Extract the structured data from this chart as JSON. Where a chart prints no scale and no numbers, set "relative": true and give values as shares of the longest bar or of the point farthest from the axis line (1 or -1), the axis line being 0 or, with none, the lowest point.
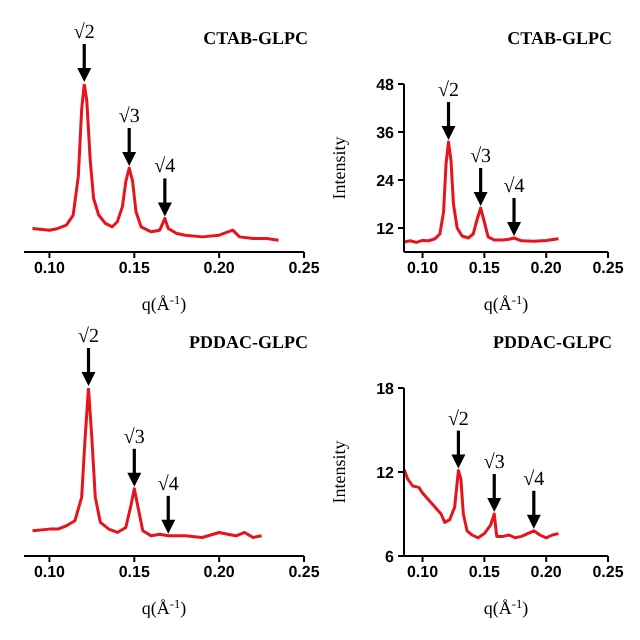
{
  "chart_data": [
    {
      "type": "line",
      "title": "CTAB-GLPC",
      "xlabel": "q(Å$^{-1}$)",
      "relative": true,
      "xlim": [
        0.085,
        0.25
      ],
      "xticks": [
        {
          "value": 0.1,
          "label": "0.10"
        },
        {
          "value": 0.15,
          "label": "0.15"
        },
        {
          "value": 0.2,
          "label": "0.20"
        },
        {
          "value": 0.25,
          "label": "0.25"
        }
      ],
      "marker": "none",
      "line_style": "solid",
      "series": [
        {
          "color": "#e8141c",
          "x": [
            0.09,
            0.1,
            0.105,
            0.11,
            0.114,
            0.117,
            0.119,
            0.1205,
            0.122,
            0.124,
            0.126,
            0.129,
            0.133,
            0.137,
            0.14,
            0.143,
            0.145,
            0.147,
            0.149,
            0.151,
            0.154,
            0.16,
            0.165,
            0.168,
            0.17,
            0.175,
            0.18,
            0.19,
            0.2,
            0.208,
            0.212,
            0.22,
            0.228,
            0.235
          ],
          "values": [
            0.14,
            0.13,
            0.14,
            0.16,
            0.22,
            0.45,
            0.85,
            1,
            0.9,
            0.55,
            0.32,
            0.22,
            0.17,
            0.15,
            0.18,
            0.27,
            0.42,
            0.5,
            0.42,
            0.24,
            0.15,
            0.12,
            0.13,
            0.2,
            0.14,
            0.11,
            0.1,
            0.09,
            0.1,
            0.13,
            0.09,
            0.08,
            0.08,
            0.07
          ]
        }
      ],
      "annotations": [
        {
          "text": "√2",
          "x": 0.1205,
          "y": 1
        },
        {
          "text": "√3",
          "x": 0.147,
          "y": 0.5
        },
        {
          "text": "√4",
          "x": 0.168,
          "y": 0.2
        }
      ]
    },
    {
      "type": "line",
      "title": "CTAB-GLPC",
      "xlabel": "q(Å$^{-1}$)",
      "ylabel": "Intensity",
      "xlim": [
        0.085,
        0.25
      ],
      "xticks": [
        {
          "value": 0.1,
          "label": "0.10"
        },
        {
          "value": 0.15,
          "label": "0.15"
        },
        {
          "value": 0.2,
          "label": "0.20"
        },
        {
          "value": 0.25,
          "label": "0.25"
        }
      ],
      "ylim": [
        6,
        48
      ],
      "yticks": [
        12,
        24,
        36,
        48
      ],
      "marker": "none",
      "line_style": "solid",
      "series": [
        {
          "color": "#e8141c",
          "x": [
            0.085,
            0.09,
            0.095,
            0.1,
            0.105,
            0.11,
            0.114,
            0.117,
            0.119,
            0.121,
            0.123,
            0.125,
            0.128,
            0.132,
            0.137,
            0.141,
            0.144,
            0.147,
            0.15,
            0.153,
            0.158,
            0.165,
            0.17,
            0.174,
            0.18,
            0.19,
            0.2,
            0.21
          ],
          "values": [
            8.5,
            8.8,
            8.4,
            8.9,
            8.8,
            9.3,
            10.5,
            16,
            28,
            33.5,
            29,
            18,
            12,
            10,
            9.5,
            10.5,
            14,
            17,
            13.5,
            9.8,
            9,
            9,
            9.2,
            9.5,
            8.8,
            8.7,
            8.9,
            9.3
          ]
        }
      ],
      "annotations": [
        {
          "text": "√2",
          "x": 0.121,
          "y": 33.5
        },
        {
          "text": "√3",
          "x": 0.147,
          "y": 17
        },
        {
          "text": "√4",
          "x": 0.174,
          "y": 9.5
        }
      ]
    },
    {
      "type": "line",
      "title": "PDDAC-GLPC",
      "xlabel": "q(Å$^{-1}$)",
      "relative": true,
      "xlim": [
        0.085,
        0.25
      ],
      "xticks": [
        {
          "value": 0.1,
          "label": "0.10"
        },
        {
          "value": 0.15,
          "label": "0.15"
        },
        {
          "value": 0.2,
          "label": "0.20"
        },
        {
          "value": 0.25,
          "label": "0.25"
        }
      ],
      "marker": "none",
      "line_style": "solid",
      "series": [
        {
          "color": "#e8141c",
          "x": [
            0.09,
            0.1,
            0.105,
            0.11,
            0.115,
            0.119,
            0.121,
            0.123,
            0.125,
            0.127,
            0.13,
            0.135,
            0.14,
            0.145,
            0.148,
            0.15,
            0.152,
            0.155,
            0.16,
            0.165,
            0.17,
            0.18,
            0.19,
            0.2,
            0.205,
            0.21,
            0.215,
            0.22,
            0.225
          ],
          "values": [
            0.15,
            0.16,
            0.16,
            0.18,
            0.21,
            0.35,
            0.7,
            1,
            0.7,
            0.35,
            0.2,
            0.16,
            0.14,
            0.17,
            0.3,
            0.4,
            0.3,
            0.15,
            0.12,
            0.13,
            0.12,
            0.12,
            0.11,
            0.14,
            0.13,
            0.12,
            0.14,
            0.11,
            0.12
          ]
        }
      ],
      "annotations": [
        {
          "text": "√2",
          "x": 0.123,
          "y": 1
        },
        {
          "text": "√3",
          "x": 0.15,
          "y": 0.4
        },
        {
          "text": "√4",
          "x": 0.17,
          "y": 0.12
        }
      ]
    },
    {
      "type": "line",
      "title": "PDDAC-GLPC",
      "xlabel": "q(Å$^{-1}$)",
      "ylabel": "Intensity",
      "xlim": [
        0.085,
        0.25
      ],
      "xticks": [
        {
          "value": 0.1,
          "label": "0.10"
        },
        {
          "value": 0.15,
          "label": "0.15"
        },
        {
          "value": 0.2,
          "label": "0.20"
        },
        {
          "value": 0.25,
          "label": "0.25"
        }
      ],
      "ylim": [
        6,
        18
      ],
      "yticks": [
        6,
        12,
        18
      ],
      "marker": "none",
      "line_style": "solid",
      "series": [
        {
          "color": "#e8141c",
          "x": [
            0.085,
            0.088,
            0.092,
            0.097,
            0.1,
            0.105,
            0.11,
            0.115,
            0.118,
            0.122,
            0.126,
            0.129,
            0.131,
            0.133,
            0.136,
            0.14,
            0.145,
            0.15,
            0.155,
            0.158,
            0.16,
            0.165,
            0.17,
            0.175,
            0.18,
            0.185,
            0.19,
            0.195,
            0.2,
            0.205,
            0.21
          ],
          "values": [
            12.2,
            11.5,
            11,
            10.9,
            10.5,
            10,
            9.5,
            9,
            8.4,
            8.6,
            9.5,
            12.1,
            11.5,
            9,
            7.8,
            7.5,
            7.3,
            7.6,
            8.2,
            9,
            7.4,
            7.4,
            7.5,
            7.3,
            7.4,
            7.6,
            7.8,
            7.5,
            7.3,
            7.5,
            7.6
          ]
        }
      ],
      "annotations": [
        {
          "text": "√2",
          "x": 0.129,
          "y": 12.1
        },
        {
          "text": "√3",
          "x": 0.158,
          "y": 9
        },
        {
          "text": "√4",
          "x": 0.19,
          "y": 7.8
        }
      ]
    }
  ]
}
